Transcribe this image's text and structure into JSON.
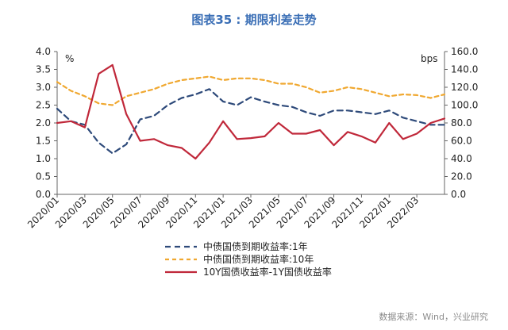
{
  "chart_data": {
    "type": "line",
    "title": "图表35 : 期限利差走势",
    "left_axis": {
      "unit": "%",
      "ylim": [
        0,
        4
      ],
      "ticks": [
        "0.0",
        "0.5",
        "1.0",
        "1.5",
        "2.0",
        "2.5",
        "3.0",
        "3.5",
        "4.0"
      ]
    },
    "right_axis": {
      "unit": "bps",
      "ylim": [
        0,
        160
      ],
      "ticks": [
        "0.0",
        "20.0",
        "40.0",
        "60.0",
        "80.0",
        "100.0",
        "120.0",
        "140.0",
        "160.0"
      ]
    },
    "x_ticks": [
      "2020/01",
      "2020/03",
      "2020/05",
      "2020/07",
      "2020/09",
      "2020/11",
      "2021/01",
      "2021/03",
      "2021/05",
      "2021/07",
      "2021/09",
      "2021/11",
      "2022/01",
      "2022/03"
    ],
    "x_range": [
      "2020/01",
      "2022/05"
    ],
    "grid": false,
    "legend_position": "bottom",
    "series": [
      {
        "name": "中债国债到期收益率:1年",
        "axis": "left",
        "color": "#2e4a7a",
        "dash": "dashed",
        "x": [
          "2020/01",
          "2020/02",
          "2020/03",
          "2020/04",
          "2020/05",
          "2020/06",
          "2020/07",
          "2020/08",
          "2020/09",
          "2020/10",
          "2020/11",
          "2020/12",
          "2021/01",
          "2021/02",
          "2021/03",
          "2021/04",
          "2021/05",
          "2021/06",
          "2021/07",
          "2021/08",
          "2021/09",
          "2021/10",
          "2021/11",
          "2021/12",
          "2022/01",
          "2022/02",
          "2022/03",
          "2022/04",
          "2022/05"
        ],
        "values": [
          2.4,
          2.05,
          1.95,
          1.45,
          1.15,
          1.4,
          2.1,
          2.2,
          2.5,
          2.7,
          2.8,
          2.95,
          2.6,
          2.5,
          2.72,
          2.6,
          2.5,
          2.45,
          2.3,
          2.2,
          2.35,
          2.35,
          2.3,
          2.25,
          2.35,
          2.15,
          2.05,
          1.95,
          1.95
        ]
      },
      {
        "name": "中债国债到期收益率:10年",
        "axis": "left",
        "color": "#f0a830",
        "dash": "dashed",
        "x": [
          "2020/01",
          "2020/02",
          "2020/03",
          "2020/04",
          "2020/05",
          "2020/06",
          "2020/07",
          "2020/08",
          "2020/09",
          "2020/10",
          "2020/11",
          "2020/12",
          "2021/01",
          "2021/02",
          "2021/03",
          "2021/04",
          "2021/05",
          "2021/06",
          "2021/07",
          "2021/08",
          "2021/09",
          "2021/10",
          "2021/11",
          "2021/12",
          "2022/01",
          "2022/02",
          "2022/03",
          "2022/04",
          "2022/05"
        ],
        "values": [
          3.15,
          2.9,
          2.75,
          2.55,
          2.5,
          2.75,
          2.85,
          2.95,
          3.1,
          3.2,
          3.25,
          3.3,
          3.2,
          3.25,
          3.25,
          3.2,
          3.1,
          3.1,
          3.0,
          2.85,
          2.9,
          3.0,
          2.95,
          2.85,
          2.75,
          2.8,
          2.78,
          2.7,
          2.8
        ]
      },
      {
        "name": "10Y国债收益率-1Y国债收益率",
        "axis": "right",
        "color": "#c0283a",
        "dash": "solid",
        "x": [
          "2020/01",
          "2020/02",
          "2020/03",
          "2020/04",
          "2020/05",
          "2020/06",
          "2020/07",
          "2020/08",
          "2020/09",
          "2020/10",
          "2020/11",
          "2020/12",
          "2021/01",
          "2021/02",
          "2021/03",
          "2021/04",
          "2021/05",
          "2021/06",
          "2021/07",
          "2021/08",
          "2021/09",
          "2021/10",
          "2021/11",
          "2021/12",
          "2022/01",
          "2022/02",
          "2022/03",
          "2022/04",
          "2022/05"
        ],
        "values": [
          80,
          82,
          75,
          135,
          145,
          90,
          60,
          62,
          55,
          52,
          40,
          58,
          82,
          62,
          63,
          65,
          80,
          68,
          68,
          72,
          55,
          70,
          65,
          58,
          80,
          62,
          68,
          80,
          85
        ]
      }
    ],
    "source": "数据来源：Wind，兴业研究"
  }
}
